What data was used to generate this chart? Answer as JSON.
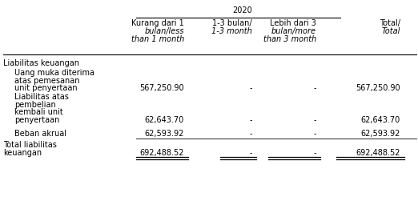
{
  "title_year": "2020",
  "col_headers": [
    [
      "Kurang dari 1",
      "bulan/less",
      "than 1 month"
    ],
    [
      "1-3 bulan/",
      "1-3 month"
    ],
    [
      "Lebih dari 3",
      "bulan/more",
      "than 3 month"
    ],
    [
      "Total/Total"
    ]
  ],
  "rows": [
    {
      "label_lines": [
        "Liabilitas keuangan"
      ],
      "indent": false,
      "values": [
        "",
        "",
        "",
        ""
      ]
    },
    {
      "label_lines": [
        "Uang muka diterima",
        "atas pemesanan",
        "unit penyertaan"
      ],
      "indent": true,
      "values": [
        "567,250.90",
        "-",
        "-",
        "567,250.90"
      ]
    },
    {
      "label_lines": [
        "Liabilitas atas",
        "pembelian",
        "kembali unit",
        "penyertaan"
      ],
      "indent": true,
      "values": [
        "62,643.70",
        "-",
        "-",
        "62,643.70"
      ]
    },
    {
      "label_lines": [
        "Beban akrual"
      ],
      "indent": true,
      "values": [
        "62,593.92",
        "-",
        "-",
        "62,593.92"
      ]
    },
    {
      "label_lines": [
        "Total liabilitas",
        "keuangan"
      ],
      "indent": false,
      "values": [
        "692,488.52",
        "-",
        "-",
        "692,488.52"
      ]
    }
  ],
  "bg_color": "#ffffff",
  "text_color": "#000000",
  "font_size": 7.0,
  "header_font_size": 7.0
}
